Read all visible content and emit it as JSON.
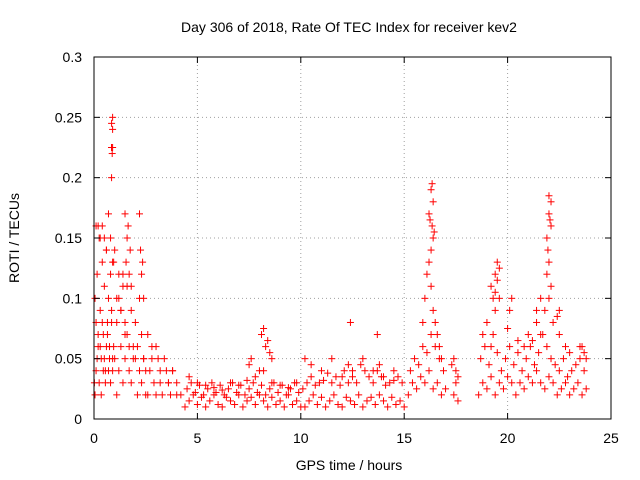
{
  "chart_data": {
    "type": "scatter",
    "title": "Day 306 of 2018, Rate Of TEC Index for receiver kev2",
    "xlabel": "GPS time / hours",
    "ylabel": "ROTI / TECUs",
    "xlim": [
      0,
      25
    ],
    "ylim": [
      0,
      0.3
    ],
    "xticks": [
      "0",
      "5",
      "10",
      "15",
      "20",
      "25"
    ],
    "yticks": [
      "0",
      "0.05",
      "0.1",
      "0.15",
      "0.2",
      "0.25",
      "0.3"
    ],
    "grid": true,
    "marker": "plus",
    "color": "#ff0000",
    "x": [
      0.02,
      0.05,
      0.1,
      0.15,
      0.2,
      0.25,
      0.3,
      0.35,
      0.4,
      0.45,
      0.5,
      0.55,
      0.6,
      0.65,
      0.7,
      0.75,
      0.8,
      0.85,
      0.9,
      0.95,
      0.05,
      0.1,
      0.15,
      0.2,
      0.25,
      0.3,
      0.35,
      0.4,
      0.45,
      0.5,
      0.55,
      0.6,
      0.65,
      0.7,
      0.75,
      0.8,
      0.85,
      0.9,
      0.95,
      1.0,
      0.1,
      0.2,
      0.3,
      0.4,
      0.5,
      0.6,
      0.7,
      0.8,
      0.9,
      1.0,
      1.1,
      1.2,
      1.3,
      1.4,
      1.5,
      0.85,
      0.85,
      0.85,
      0.9,
      0.9,
      0.9,
      0.85,
      0.88,
      1.1,
      1.2,
      1.3,
      1.4,
      1.5,
      1.6,
      1.7,
      1.8,
      1.9,
      2.0,
      2.1,
      2.2,
      2.3,
      2.4,
      2.5,
      1.1,
      1.2,
      1.3,
      1.4,
      1.5,
      1.6,
      1.7,
      1.8,
      1.9,
      2.0,
      2.1,
      2.2,
      2.3,
      2.4,
      2.5,
      1.5,
      1.55,
      1.6,
      1.65,
      1.7,
      1.75,
      1.8,
      2.2,
      2.25,
      2.3,
      2.35,
      2.4,
      2.6,
      2.7,
      2.8,
      2.9,
      3.0,
      3.1,
      3.2,
      3.3,
      3.5,
      3.6,
      3.7,
      3.8,
      4.0,
      2.6,
      2.8,
      3.0,
      3.2,
      3.4,
      3.6,
      3.8,
      4.0,
      4.2,
      4.4,
      4.6,
      4.8,
      5.0,
      5.2,
      5.4,
      5.6,
      5.8,
      6.0,
      6.2,
      6.4,
      6.6,
      6.8,
      7.0,
      7.2,
      7.4,
      7.6,
      7.8,
      8.0,
      8.2,
      8.4,
      8.6,
      8.8,
      9.0,
      9.2,
      9.4,
      9.6,
      9.8,
      10.0,
      4.5,
      4.7,
      4.9,
      5.1,
      5.3,
      5.5,
      5.7,
      5.9,
      6.1,
      6.3,
      6.5,
      6.7,
      6.9,
      7.1,
      7.3,
      7.5,
      7.7,
      7.9,
      8.1,
      8.3,
      8.5,
      8.7,
      8.9,
      9.1,
      9.3,
      9.5,
      9.7,
      9.9,
      4.6,
      5.0,
      5.4,
      5.8,
      6.2,
      6.6,
      7.0,
      7.4,
      7.8,
      8.2,
      8.6,
      9.0,
      9.4,
      9.8,
      7.5,
      7.6,
      8.0,
      8.1,
      8.2,
      8.3,
      8.4,
      8.5,
      8.6,
      10.2,
      10.4,
      10.6,
      10.8,
      11.0,
      11.2,
      11.4,
      11.6,
      11.8,
      12.0,
      12.2,
      12.4,
      12.6,
      12.8,
      13.0,
      13.2,
      13.4,
      13.6,
      13.8,
      14.0,
      14.2,
      14.4,
      14.6,
      14.8,
      15.0,
      10.1,
      10.3,
      10.5,
      10.7,
      10.9,
      11.1,
      11.3,
      11.5,
      11.7,
      11.9,
      12.1,
      12.3,
      12.5,
      12.7,
      12.9,
      13.1,
      13.3,
      13.5,
      13.7,
      13.9,
      14.1,
      14.3,
      14.5,
      14.7,
      14.9,
      10.5,
      11.0,
      11.5,
      12.0,
      12.3,
      12.5,
      13.0,
      13.5,
      13.8,
      14.0,
      14.5,
      12.4,
      13.7,
      10.2,
      15.2,
      15.4,
      15.6,
      15.8,
      16.0,
      16.2,
      16.4,
      16.6,
      16.8,
      17.0,
      17.4,
      17.6,
      15.3,
      15.5,
      15.7,
      15.9,
      16.1,
      16.3,
      16.5,
      16.7,
      16.9,
      17.5,
      15.9,
      16.0,
      16.1,
      16.2,
      16.3,
      16.4,
      16.5,
      16.6,
      16.7,
      16.8,
      16.2,
      16.3,
      16.35,
      16.4,
      16.3,
      16.35,
      16.4,
      16.25,
      16.45,
      17.3,
      17.4,
      17.5,
      17.6,
      18.6,
      18.8,
      19.0,
      19.2,
      19.4,
      19.6,
      19.8,
      20.0,
      20.2,
      20.4,
      20.6,
      20.8,
      21.0,
      21.2,
      21.4,
      21.6,
      21.8,
      22.0,
      22.2,
      22.4,
      22.6,
      22.8,
      23.0,
      23.2,
      23.4,
      23.6,
      23.8,
      18.7,
      18.9,
      19.1,
      19.3,
      19.5,
      19.7,
      19.9,
      20.1,
      20.3,
      20.5,
      20.7,
      20.9,
      21.1,
      21.3,
      21.5,
      21.7,
      21.9,
      22.1,
      22.3,
      22.5,
      22.7,
      22.9,
      23.1,
      23.3,
      23.5,
      23.7,
      18.8,
      19.0,
      19.2,
      19.4,
      19.6,
      20.0,
      20.5,
      20.8,
      21.0,
      21.2,
      21.4,
      21.6,
      21.8,
      22.0,
      22.2,
      22.5,
      22.8,
      23.0,
      23.5,
      23.8,
      19.2,
      19.4,
      19.5,
      19.6,
      19.3,
      19.4,
      19.5,
      21.9,
      22.0,
      22.1,
      22.0,
      22.1,
      21.95,
      22.05,
      21.9,
      22.0,
      22.1,
      20.1,
      20.2,
      21.4,
      21.6,
      22.4,
      22.5,
      23.6,
      23.7
    ],
    "y": [
      0.03,
      0.1,
      0.08,
      0.12,
      0.06,
      0.15,
      0.09,
      0.05,
      0.13,
      0.07,
      0.11,
      0.04,
      0.14,
      0.08,
      0.1,
      0.06,
      0.12,
      0.09,
      0.05,
      0.13,
      0.02,
      0.04,
      0.05,
      0.07,
      0.03,
      0.06,
      0.02,
      0.08,
      0.04,
      0.05,
      0.03,
      0.06,
      0.07,
      0.04,
      0.05,
      0.03,
      0.08,
      0.04,
      0.06,
      0.05,
      0.16,
      0.16,
      0.15,
      0.16,
      0.15,
      0.14,
      0.17,
      0.15,
      0.13,
      0.14,
      0.1,
      0.12,
      0.09,
      0.11,
      0.08,
      0.225,
      0.225,
      0.245,
      0.25,
      0.24,
      0.225,
      0.2,
      0.22,
      0.02,
      0.04,
      0.06,
      0.03,
      0.05,
      0.07,
      0.04,
      0.03,
      0.06,
      0.05,
      0.02,
      0.04,
      0.03,
      0.05,
      0.02,
      0.08,
      0.1,
      0.09,
      0.12,
      0.07,
      0.11,
      0.06,
      0.09,
      0.05,
      0.08,
      0.06,
      0.1,
      0.07,
      0.05,
      0.04,
      0.17,
      0.13,
      0.15,
      0.16,
      0.12,
      0.14,
      0.11,
      0.17,
      0.14,
      0.12,
      0.13,
      0.1,
      0.02,
      0.04,
      0.06,
      0.03,
      0.02,
      0.05,
      0.03,
      0.02,
      0.04,
      0.03,
      0.02,
      0.04,
      0.02,
      0.07,
      0.05,
      0.06,
      0.04,
      0.05,
      0.03,
      0.04,
      0.03,
      0.02,
      0.01,
      0.015,
      0.02,
      0.012,
      0.018,
      0.01,
      0.015,
      0.02,
      0.012,
      0.01,
      0.018,
      0.015,
      0.012,
      0.02,
      0.01,
      0.015,
      0.018,
      0.012,
      0.02,
      0.015,
      0.01,
      0.018,
      0.012,
      0.015,
      0.01,
      0.02,
      0.012,
      0.015,
      0.01,
      0.025,
      0.03,
      0.022,
      0.028,
      0.02,
      0.025,
      0.03,
      0.022,
      0.028,
      0.02,
      0.025,
      0.03,
      0.022,
      0.028,
      0.02,
      0.025,
      0.03,
      0.022,
      0.028,
      0.02,
      0.025,
      0.03,
      0.022,
      0.028,
      0.02,
      0.025,
      0.03,
      0.022,
      0.035,
      0.03,
      0.028,
      0.026,
      0.024,
      0.03,
      0.028,
      0.032,
      0.035,
      0.04,
      0.03,
      0.028,
      0.026,
      0.03,
      0.045,
      0.05,
      0.04,
      0.07,
      0.075,
      0.06,
      0.065,
      0.055,
      0.05,
      0.01,
      0.015,
      0.02,
      0.012,
      0.018,
      0.01,
      0.015,
      0.02,
      0.012,
      0.01,
      0.018,
      0.015,
      0.012,
      0.02,
      0.01,
      0.015,
      0.018,
      0.012,
      0.02,
      0.015,
      0.01,
      0.018,
      0.012,
      0.015,
      0.01,
      0.025,
      0.03,
      0.035,
      0.028,
      0.03,
      0.032,
      0.038,
      0.03,
      0.035,
      0.028,
      0.04,
      0.03,
      0.035,
      0.03,
      0.045,
      0.04,
      0.035,
      0.03,
      0.04,
      0.035,
      0.028,
      0.03,
      0.032,
      0.035,
      0.03,
      0.045,
      0.04,
      0.05,
      0.035,
      0.045,
      0.04,
      0.05,
      0.04,
      0.045,
      0.035,
      0.04,
      0.08,
      0.07,
      0.05,
      0.02,
      0.03,
      0.025,
      0.035,
      0.03,
      0.04,
      0.025,
      0.03,
      0.02,
      0.025,
      0.02,
      0.015,
      0.04,
      0.05,
      0.045,
      0.06,
      0.055,
      0.07,
      0.06,
      0.05,
      0.04,
      0.03,
      0.08,
      0.1,
      0.12,
      0.13,
      0.11,
      0.09,
      0.08,
      0.07,
      0.06,
      0.05,
      0.17,
      0.19,
      0.195,
      0.18,
      0.14,
      0.16,
      0.15,
      0.165,
      0.155,
      0.045,
      0.05,
      0.04,
      0.035,
      0.02,
      0.03,
      0.025,
      0.035,
      0.02,
      0.03,
      0.025,
      0.035,
      0.03,
      0.02,
      0.03,
      0.025,
      0.035,
      0.03,
      0.04,
      0.03,
      0.025,
      0.035,
      0.03,
      0.02,
      0.025,
      0.03,
      0.02,
      0.025,
      0.03,
      0.02,
      0.025,
      0.05,
      0.06,
      0.045,
      0.07,
      0.055,
      0.04,
      0.05,
      0.06,
      0.045,
      0.055,
      0.04,
      0.05,
      0.06,
      0.045,
      0.055,
      0.07,
      0.06,
      0.05,
      0.045,
      0.04,
      0.05,
      0.035,
      0.04,
      0.045,
      0.05,
      0.04,
      0.07,
      0.08,
      0.06,
      0.09,
      0.1,
      0.075,
      0.065,
      0.06,
      0.07,
      0.065,
      0.08,
      0.07,
      0.09,
      0.1,
      0.08,
      0.07,
      0.06,
      0.055,
      0.06,
      0.05,
      0.11,
      0.12,
      0.13,
      0.125,
      0.1,
      0.105,
      0.115,
      0.15,
      0.17,
      0.18,
      0.185,
      0.16,
      0.14,
      0.165,
      0.12,
      0.13,
      0.11,
      0.09,
      0.1,
      0.09,
      0.1,
      0.085,
      0.09,
      0.06,
      0.055
    ]
  }
}
